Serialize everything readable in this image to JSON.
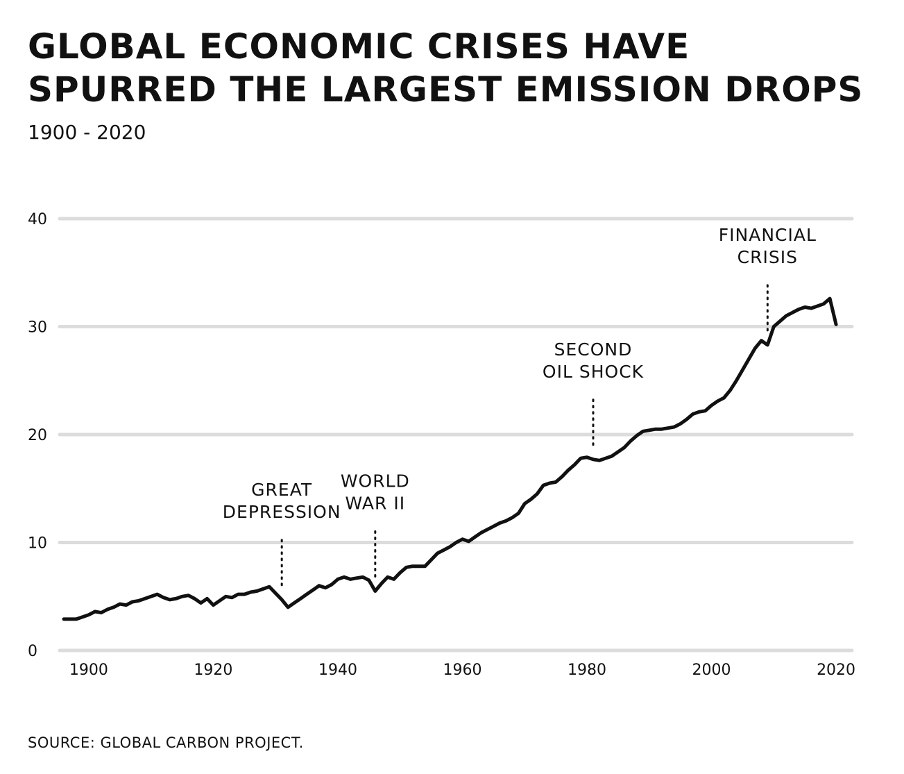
{
  "header": {
    "title_line1": "GLOBAL ECONOMIC CRISES HAVE",
    "title_line2": "SPURRED THE LARGEST EMISSION DROPS",
    "subtitle": "1900 - 2020"
  },
  "footer": {
    "source": "SOURCE: GLOBAL CARBON PROJECT."
  },
  "colors": {
    "line": "#111111",
    "grid": "#dcdcdc",
    "text": "#111111"
  },
  "chart_data": {
    "type": "line",
    "xlim": [
      1896,
      2023
    ],
    "ylim": [
      0,
      40
    ],
    "grid": true,
    "xticks": [
      {
        "value": 1900,
        "label": "1900"
      },
      {
        "value": 1920,
        "label": "1920"
      },
      {
        "value": 1940,
        "label": "1940"
      },
      {
        "value": 1960,
        "label": "1960"
      },
      {
        "value": 1980,
        "label": "1980"
      },
      {
        "value": 2000,
        "label": "2000"
      },
      {
        "value": 2020,
        "label": "2020"
      }
    ],
    "yticks": [
      {
        "value": 0,
        "label": "0"
      },
      {
        "value": 10,
        "label": "10"
      },
      {
        "value": 20,
        "label": "20"
      },
      {
        "value": 30,
        "label": "30"
      },
      {
        "value": 40,
        "label": "40"
      }
    ],
    "series": [
      {
        "x": [
          1896,
          1898,
          1900,
          1901,
          1902,
          1903,
          1904,
          1905,
          1906,
          1907,
          1908,
          1909,
          1910,
          1911,
          1912,
          1913,
          1914,
          1915,
          1916,
          1917,
          1918,
          1919,
          1920,
          1921,
          1922,
          1923,
          1924,
          1925,
          1926,
          1927,
          1928,
          1929,
          1930,
          1931,
          1932,
          1933,
          1934,
          1935,
          1936,
          1937,
          1938,
          1939,
          1940,
          1941,
          1942,
          1943,
          1944,
          1945,
          1946,
          1947,
          1948,
          1949,
          1950,
          1951,
          1952,
          1953,
          1954,
          1955,
          1956,
          1957,
          1958,
          1959,
          1960,
          1961,
          1962,
          1963,
          1964,
          1965,
          1966,
          1967,
          1968,
          1969,
          1970,
          1971,
          1972,
          1973,
          1974,
          1975,
          1976,
          1977,
          1978,
          1979,
          1980,
          1981,
          1982,
          1983,
          1984,
          1985,
          1986,
          1987,
          1988,
          1989,
          1990,
          1991,
          1992,
          1993,
          1994,
          1995,
          1996,
          1997,
          1998,
          1999,
          2000,
          2001,
          2002,
          2003,
          2004,
          2005,
          2006,
          2007,
          2008,
          2009,
          2010,
          2011,
          2012,
          2013,
          2014,
          2015,
          2016,
          2017,
          2018,
          2019,
          2020
        ],
        "y": [
          2.9,
          2.9,
          3.3,
          3.6,
          3.5,
          3.8,
          4.0,
          4.3,
          4.2,
          4.5,
          4.6,
          4.8,
          5.0,
          5.2,
          4.9,
          4.7,
          4.8,
          5.0,
          5.1,
          4.8,
          4.4,
          4.8,
          4.2,
          4.6,
          5.0,
          4.9,
          5.2,
          5.2,
          5.4,
          5.5,
          5.7,
          5.9,
          5.3,
          4.7,
          4.0,
          4.4,
          4.8,
          5.2,
          5.6,
          6.0,
          5.8,
          6.1,
          6.6,
          6.8,
          6.6,
          6.7,
          6.8,
          6.5,
          5.5,
          6.2,
          6.8,
          6.6,
          7.2,
          7.7,
          7.8,
          7.8,
          7.8,
          8.4,
          9.0,
          9.3,
          9.6,
          10.0,
          10.3,
          10.1,
          10.5,
          10.9,
          11.2,
          11.5,
          11.8,
          12.0,
          12.3,
          12.7,
          13.6,
          14.0,
          14.5,
          15.3,
          15.5,
          15.6,
          16.1,
          16.7,
          17.2,
          17.8,
          17.9,
          17.7,
          17.6,
          17.8,
          18.0,
          18.4,
          18.8,
          19.4,
          19.9,
          20.3,
          20.4,
          20.5,
          20.5,
          20.6,
          20.7,
          21.0,
          21.4,
          21.9,
          22.1,
          22.2,
          22.7,
          23.1,
          23.4,
          24.1,
          25.0,
          26.0,
          27.0,
          28.0,
          28.7,
          28.3,
          30.0,
          30.5,
          31.0,
          31.3,
          31.6,
          31.8,
          31.7,
          31.9,
          32.1,
          32.6,
          30.2
        ]
      }
    ],
    "annotations": [
      {
        "x": 1931,
        "lines": [
          "GREAT",
          "DEPRESSION"
        ]
      },
      {
        "x": 1946,
        "lines": [
          "WORLD",
          "WAR II"
        ]
      },
      {
        "x": 1981,
        "lines": [
          "SECOND",
          "OIL SHOCK"
        ]
      },
      {
        "x": 2009,
        "lines": [
          "FINANCIAL",
          "CRISIS"
        ]
      }
    ]
  }
}
